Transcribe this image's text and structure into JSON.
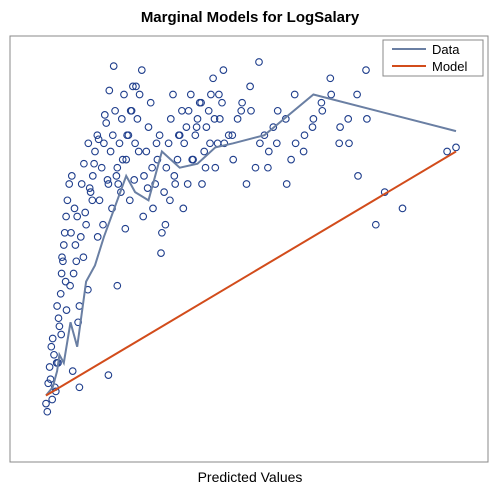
{
  "chart_data": {
    "type": "scatter",
    "title": "Marginal Models for LogSalary",
    "xlabel": "Predicted Values",
    "ylabel": "",
    "xlim": [
      0,
      1000
    ],
    "ylim": [
      0,
      1000
    ],
    "grid": false,
    "legend_position": "top-right",
    "colors": {
      "points": "#1f3e8c",
      "data_line": "#6a7fa3",
      "model_line": "#d24c1b",
      "frame": "#888888"
    },
    "legend": [
      {
        "label": "Data",
        "color": "#6a7fa3"
      },
      {
        "label": "Model",
        "color": "#d24c1b"
      }
    ],
    "series": [
      {
        "name": "Data",
        "kind": "line",
        "x": [
          0,
          15,
          25,
          30,
          40,
          55,
          70,
          90,
          110,
          130,
          160,
          180,
          200,
          230,
          260,
          300,
          340,
          380,
          420,
          490,
          600,
          920
        ],
        "y": [
          80,
          100,
          140,
          180,
          160,
          260,
          200,
          360,
          400,
          470,
          560,
          620,
          580,
          560,
          680,
          640,
          650,
          690,
          700,
          720,
          820,
          730
        ]
      },
      {
        "name": "Model",
        "kind": "line",
        "x": [
          0,
          920
        ],
        "y": [
          80,
          680
        ]
      },
      {
        "name": "points",
        "kind": "scatter",
        "x": [
          0,
          8,
          15,
          20,
          25,
          30,
          35,
          40,
          45,
          10,
          18,
          22,
          28,
          33,
          38,
          42,
          48,
          52,
          58,
          62,
          66,
          70,
          75,
          80,
          85,
          90,
          95,
          100,
          105,
          110,
          115,
          120,
          125,
          130,
          135,
          140,
          145,
          150,
          155,
          160,
          165,
          170,
          175,
          180,
          185,
          190,
          195,
          200,
          205,
          210,
          215,
          220,
          225,
          230,
          235,
          240,
          245,
          250,
          255,
          260,
          265,
          270,
          275,
          280,
          285,
          290,
          295,
          300,
          305,
          310,
          315,
          320,
          325,
          330,
          335,
          340,
          345,
          350,
          355,
          360,
          365,
          370,
          375,
          380,
          385,
          390,
          395,
          400,
          410,
          420,
          430,
          440,
          450,
          460,
          470,
          480,
          490,
          500,
          510,
          520,
          540,
          550,
          560,
          580,
          600,
          620,
          640,
          660,
          680,
          700,
          720,
          740,
          760,
          800,
          900,
          920,
          5,
          12,
          27,
          36,
          44,
          56,
          64,
          72,
          84,
          94,
          104,
          116,
          128,
          138,
          148,
          158,
          168,
          178,
          188,
          198,
          208,
          218,
          228,
          238,
          248,
          258,
          268,
          278,
          288,
          298,
          308,
          318,
          328,
          338,
          348,
          358,
          368,
          378,
          388,
          398,
          418,
          438,
          458,
          478,
          498,
          518,
          538,
          558,
          578,
          598,
          618,
          638,
          658,
          678,
          698,
          718,
          60,
          75,
          140,
          160,
          3,
          14,
          24,
          34,
          46,
          54,
          68,
          78,
          88,
          98,
          108,
          118,
          132,
          142,
          152,
          162,
          172,
          182,
          192,
          202
        ],
        "y": [
          60,
          150,
          220,
          100,
          300,
          250,
          380,
          450,
          520,
          120,
          180,
          90,
          270,
          330,
          410,
          480,
          560,
          600,
          620,
          380,
          450,
          520,
          300,
          600,
          650,
          500,
          700,
          580,
          620,
          680,
          720,
          560,
          640,
          700,
          750,
          600,
          680,
          720,
          780,
          640,
          700,
          760,
          820,
          660,
          720,
          780,
          840,
          700,
          760,
          820,
          880,
          620,
          680,
          740,
          800,
          540,
          600,
          660,
          720,
          480,
          580,
          640,
          700,
          760,
          820,
          600,
          660,
          720,
          780,
          700,
          740,
          780,
          820,
          660,
          720,
          760,
          800,
          600,
          680,
          740,
          780,
          820,
          860,
          640,
          700,
          760,
          800,
          700,
          720,
          660,
          760,
          800,
          600,
          780,
          640,
          700,
          720,
          680,
          740,
          780,
          600,
          660,
          700,
          720,
          760,
          780,
          820,
          740,
          700,
          620,
          760,
          500,
          580,
          540,
          680,
          690,
          110,
          200,
          160,
          420,
          360,
          480,
          540,
          260,
          420,
          340,
          560,
          470,
          500,
          610,
          540,
          620,
          580,
          490,
          560,
          610,
          680,
          520,
          590,
          640,
          700,
          430,
          500,
          560,
          620,
          720,
          540,
          600,
          660,
          740,
          800,
          640,
          700,
          760,
          820,
          880,
          720,
          780,
          840,
          900,
          640,
          700,
          760,
          820,
          680,
          740,
          800,
          860,
          700,
          760,
          820,
          880,
          140,
          100,
          130,
          350,
          40,
          70,
          160,
          230,
          290,
          350,
          410,
          470,
          530,
          590,
          650,
          710,
          770,
          830,
          890,
          600,
          660,
          720,
          780,
          840
        ]
      }
    ]
  }
}
